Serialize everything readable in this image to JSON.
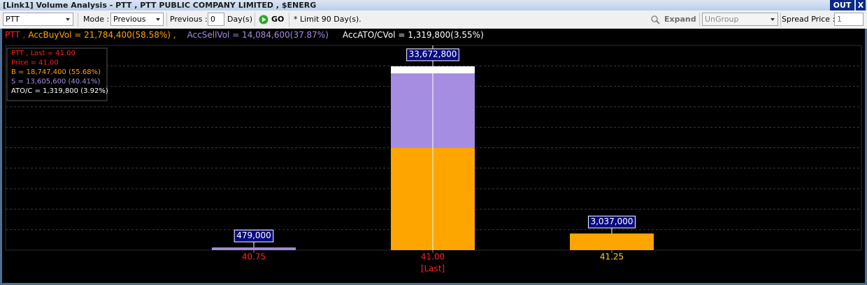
{
  "title": "[Link1] Volume Analysis - PTT , PTT PUBLIC COMPANY LIMITED , $ENERG",
  "out_button": "OUT",
  "close_button": "X",
  "toolbar": {
    "symbol": "PTT",
    "mode_label": "Mode :",
    "mode": "Previous",
    "previous_label": "Previous :",
    "previous_days": "0",
    "days_label": "Day(s)",
    "go": "GO",
    "limit_note": "* Limit 90 Day(s).",
    "expand": "Expand",
    "group": "UnGroup",
    "spread_label": "Spread Price :",
    "spread_price": "1"
  },
  "summary": [
    {
      "text": "PTT ,",
      "color": "#ff2020"
    },
    {
      "text": "AccBuyVol = 21,784,400(58.58%) ,",
      "color": "#ffa500"
    },
    {
      "text": "AccSellVol = 14,084,600(37.87%)",
      "color": "#a58de2"
    },
    {
      "text": "AccATO/CVol = 1,319,800(3.55%)",
      "color": "#ffffff"
    }
  ],
  "chart_data": {
    "type": "stacked_bar",
    "categories": [
      "40.75",
      "41.00",
      "41.25"
    ],
    "category_colors": [
      "#ff2020",
      "#ff2020",
      "#ffd21e"
    ],
    "last_label": "[Last]",
    "last_index": 1,
    "series": [
      {
        "color": "#ffa500",
        "values": [
          0,
          18747400,
          3037000
        ]
      },
      {
        "color": "#a58de2",
        "values": [
          479000,
          13605600,
          0
        ]
      },
      {
        "color": "#ffffff",
        "values": [
          0,
          1319800,
          0
        ]
      }
    ],
    "totals": [
      479000,
      33672800,
      3037000
    ],
    "total_labels": [
      "479,000",
      "33,672,800",
      "3,037,000"
    ],
    "ylim": [
      0,
      37500000
    ],
    "grid": true,
    "info_box": [
      {
        "text": "PTT , Last = 41.00",
        "color": "#ff2020"
      },
      {
        "text": "Price = 41.00",
        "color": "#ff2020"
      },
      {
        "text": "B = 18,747,400 (55.68%)",
        "color": "#ffa500"
      },
      {
        "text": "S = 13,605,600 (40.41%)",
        "color": "#a58de2"
      },
      {
        "text": "ATO/C = 1,319,800 (3.92%)",
        "color": "#ffffff"
      }
    ]
  }
}
